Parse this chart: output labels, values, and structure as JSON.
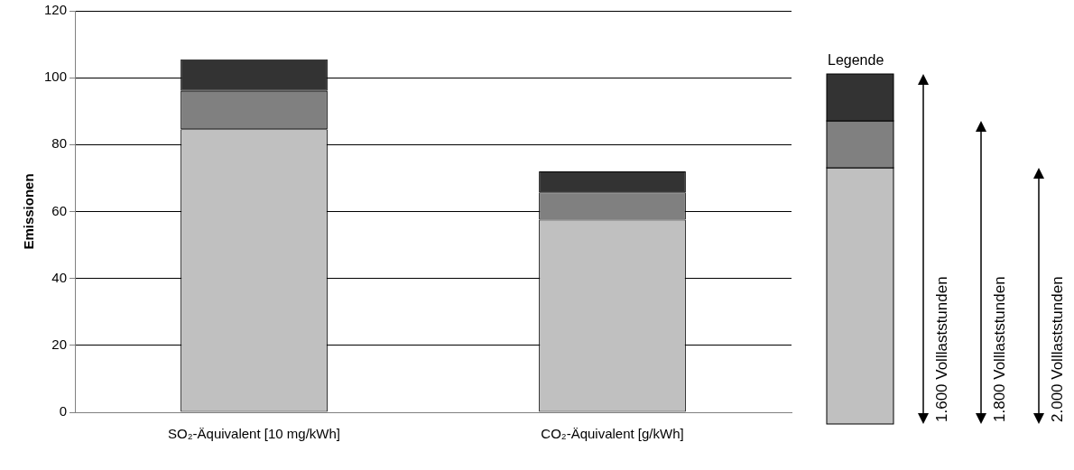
{
  "chart_data": {
    "type": "bar",
    "stacked": true,
    "ylabel": "Emissionen",
    "legend_title": "Legende",
    "grid": "y",
    "categories": [
      "SO₂-Äquivalent [10 mg/kWh]",
      "CO₂-Äquivalent [g/kWh]"
    ],
    "ylim": [
      0,
      120
    ],
    "yticks": [
      0,
      20,
      40,
      60,
      80,
      100,
      120
    ],
    "series": [
      {
        "color": "#c0c0c0",
        "values": [
          84.6,
          57.6
        ]
      },
      {
        "color": "#808080",
        "values": [
          11.5,
          8.1
        ]
      },
      {
        "color": "#333333",
        "values": [
          9.4,
          6.3
        ]
      }
    ],
    "annotations": [
      "1.600 Volllaststunden",
      "1.800 Volllaststunden",
      "2.000 Volllaststunden"
    ]
  }
}
